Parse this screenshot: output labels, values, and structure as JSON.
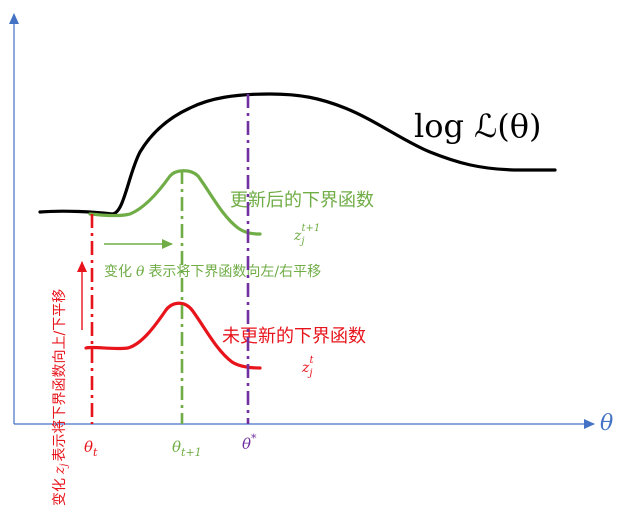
{
  "colors": {
    "axis": "#4472C4",
    "curve": "#000000",
    "updated": "#70AD47",
    "old": "#E8141C",
    "optimum": "#7030A0"
  },
  "axis": {
    "x_label": "θ"
  },
  "labels": {
    "loglik": "log ℒ(θ)",
    "updated_bound": "更新后的下界函数",
    "updated_var_base": "z",
    "updated_var_sub": "j",
    "updated_var_sup": "t+1",
    "shift_note_prefix": "变化",
    "shift_note_theta": "θ",
    "shift_note_suffix": "表示将下界函数向左/右平移",
    "old_bound": "未更新的下界函数",
    "old_var_base": "z",
    "old_var_sub": "j",
    "old_var_sup": "t",
    "vertical_note_prefix": "变化",
    "vertical_note_var": "z",
    "vertical_note_var_sub": "j",
    "vertical_note_suffix": "表示将下界函数向上/下平移"
  },
  "ticks": {
    "theta_t_base": "θ",
    "theta_t_sub": "t",
    "theta_t1_base": "θ",
    "theta_t1_sub": "t+1",
    "theta_star_base": "θ",
    "theta_star_sup": "*"
  }
}
